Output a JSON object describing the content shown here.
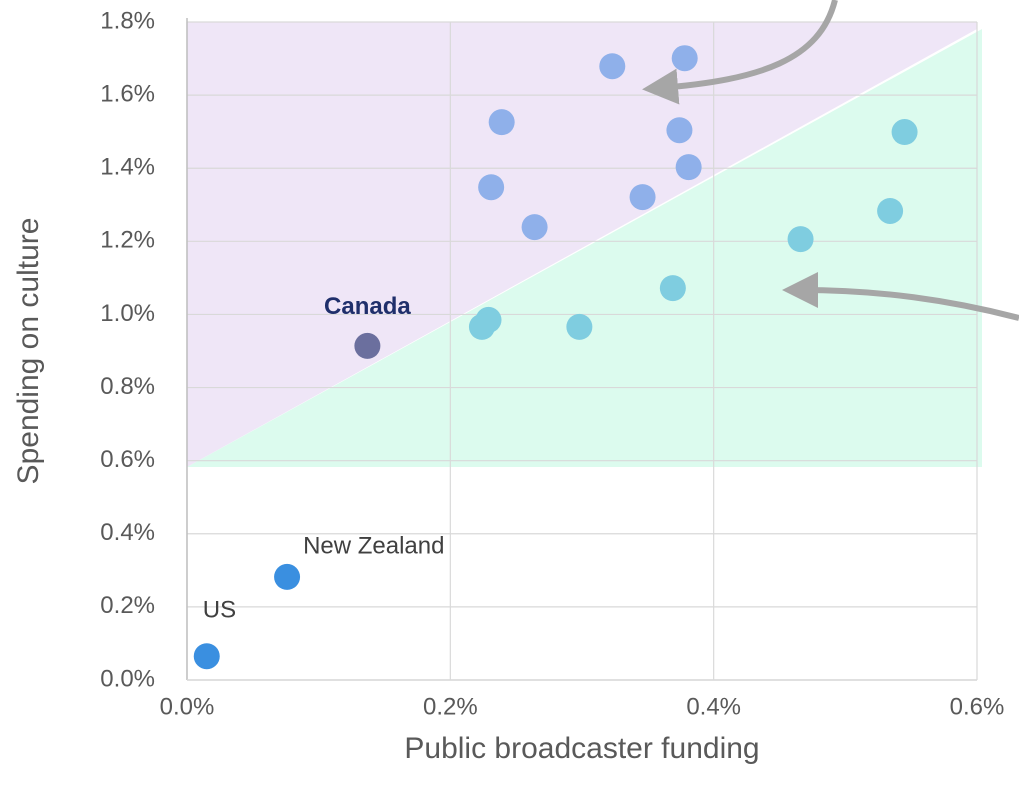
{
  "chart_data": {
    "type": "scatter",
    "x_label": "Public broadcaster funding",
    "y_label": "Spending on culture",
    "xlim": [
      0,
      0.6
    ],
    "ylim": [
      0,
      1.8
    ],
    "xticks": [
      {
        "value": 0,
        "label": "0.0%"
      },
      {
        "value": 0.2,
        "label": "0.2%"
      },
      {
        "value": 0.4,
        "label": "0.4%"
      },
      {
        "value": 0.6,
        "label": "0.6%"
      }
    ],
    "yticks": [
      {
        "value": 0,
        "label": "0.0%"
      },
      {
        "value": 0.2,
        "label": "0.2%"
      },
      {
        "value": 0.4,
        "label": "0.4%"
      },
      {
        "value": 0.6,
        "label": "0.6%"
      },
      {
        "value": 0.8,
        "label": "0.8%"
      },
      {
        "value": 1.0,
        "label": "1.0%"
      },
      {
        "value": 1.2,
        "label": "1.2%"
      },
      {
        "value": 1.4,
        "label": "1.4%"
      },
      {
        "value": 1.6,
        "label": "1.6%"
      },
      {
        "value": 1.8,
        "label": "1.8%"
      }
    ],
    "grid": true,
    "series": [
      {
        "color": "#8fb0ea",
        "x": [
          0.323,
          0.378,
          0.239,
          0.374,
          0.381,
          0.231,
          0.346,
          0.264
        ],
        "y": [
          1.679,
          1.701,
          1.526,
          1.504,
          1.403,
          1.348,
          1.321,
          1.239
        ]
      },
      {
        "color": "#7fcde0",
        "x": [
          0.545,
          0.534,
          0.466,
          0.369,
          0.229,
          0.224,
          0.298
        ],
        "y": [
          1.499,
          1.283,
          1.206,
          1.072,
          0.985,
          0.966,
          0.966
        ]
      },
      {
        "color": "#3a8fe0",
        "x": [
          0.015,
          0.076
        ],
        "y": [
          0.065,
          0.282
        ],
        "labels": [
          "US",
          "New Zealand"
        ],
        "label_color": "#404040"
      },
      {
        "color": "#6b6f9e",
        "x": [
          0.137
        ],
        "y": [
          0.914
        ],
        "labels": [
          "Canada"
        ],
        "label_color": "#1f2f6b",
        "label_bold": true
      }
    ]
  }
}
